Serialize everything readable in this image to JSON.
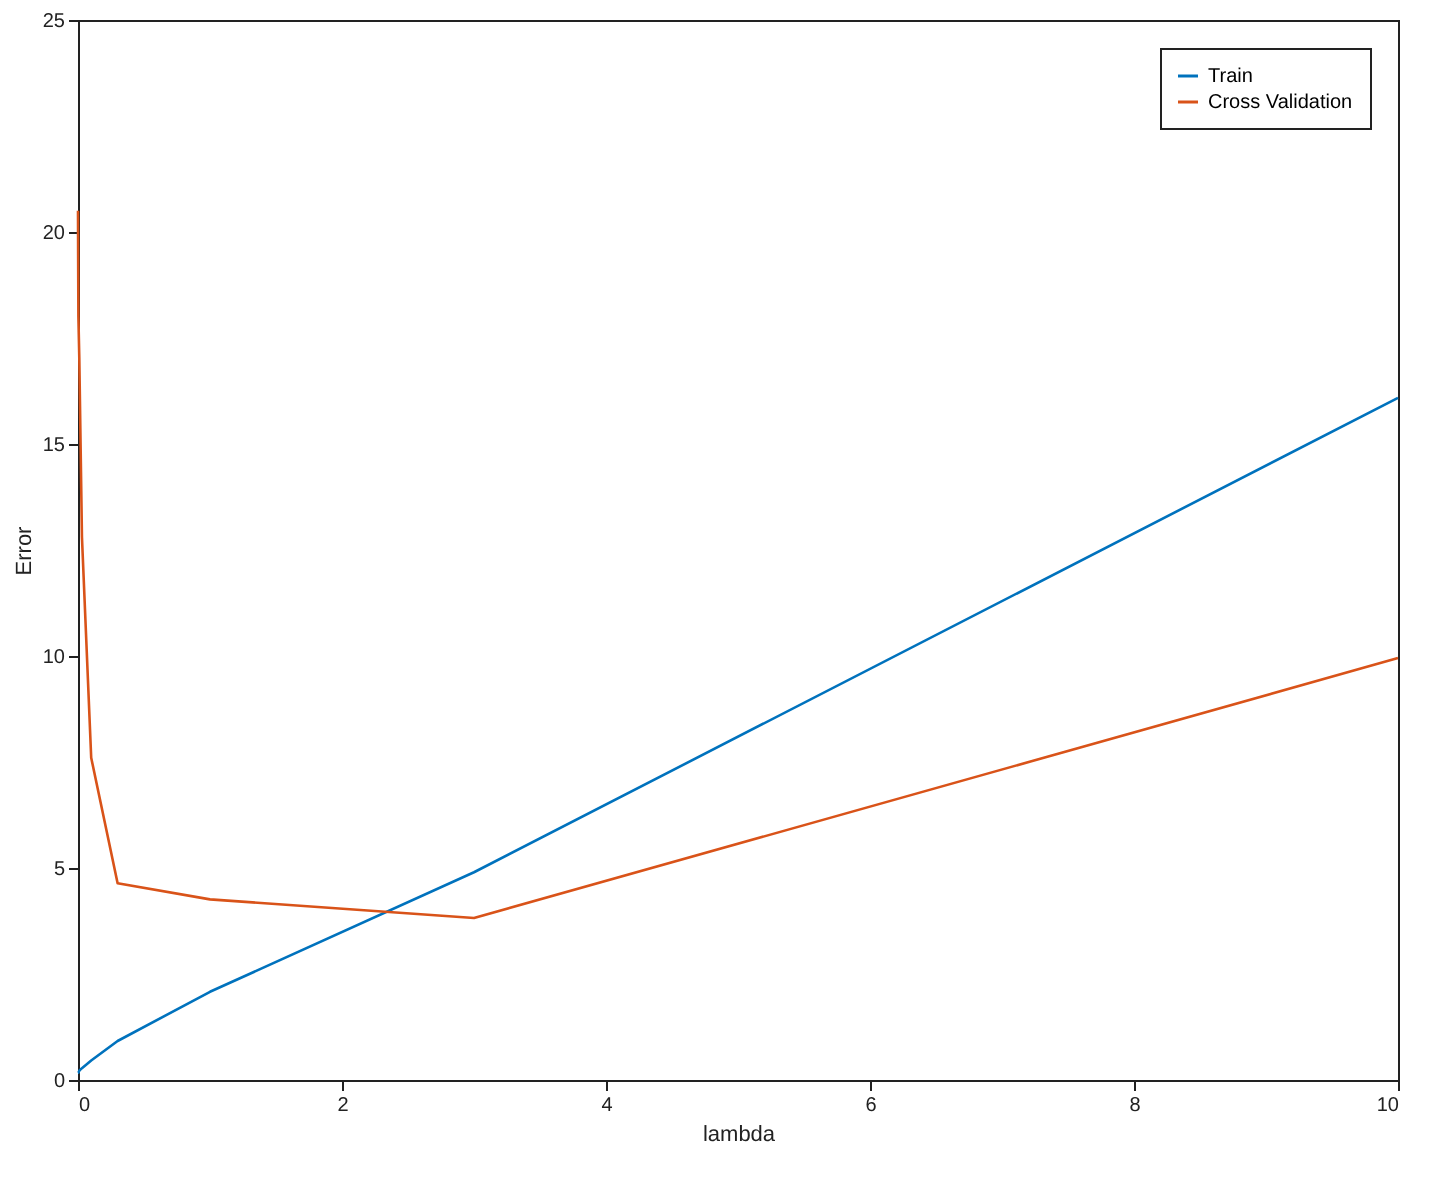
{
  "chart_data": {
    "type": "line",
    "xlabel": "lambda",
    "ylabel": "Error",
    "x": [
      0,
      0.001,
      0.003,
      0.01,
      0.03,
      0.1,
      0.3,
      1,
      3,
      10
    ],
    "series": [
      {
        "name": "Train",
        "color": "#0072bd",
        "values": [
          0.17,
          0.17,
          0.17,
          0.22,
          0.28,
          0.46,
          0.92,
          2.08,
          4.9,
          16.09
        ]
      },
      {
        "name": "Cross Validation",
        "color": "#d95319",
        "values": [
          20.5,
          19.5,
          18.0,
          17.0,
          12.8,
          7.6,
          4.64,
          4.26,
          3.82,
          9.95
        ]
      }
    ],
    "xlim": [
      0,
      10
    ],
    "xticks": [
      0,
      2,
      4,
      6,
      8,
      10
    ],
    "ylim": [
      0,
      25
    ],
    "yticks": [
      0,
      5,
      10,
      15,
      20,
      25
    ],
    "grid": false,
    "legend": "top right",
    "marker": "none",
    "line_style": "solid"
  }
}
